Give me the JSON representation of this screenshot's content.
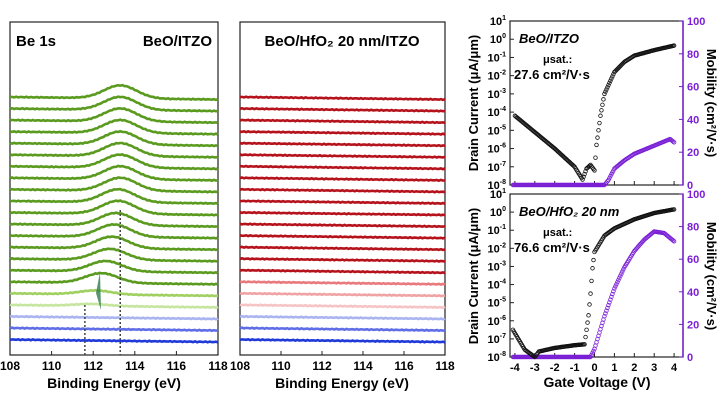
{
  "chart_data": [
    {
      "type": "line",
      "panel": "xps-left",
      "title_left": "Be 1s",
      "title_right": "BeO/ITZO",
      "xlabel": "Binding Energy (eV)",
      "xlim": [
        108,
        118
      ],
      "xticks": [
        "108",
        "110",
        "112",
        "114",
        "116",
        "118"
      ],
      "reference_lines_eV": [
        113.3,
        111.6
      ],
      "series": [
        {
          "color": "#5a9a1e",
          "peak_eV": 113.3,
          "intensity": 1.0
        },
        {
          "color": "#5a9a1e",
          "peak_eV": 113.3,
          "intensity": 1.0
        },
        {
          "color": "#5a9a1e",
          "peak_eV": 113.3,
          "intensity": 1.0
        },
        {
          "color": "#5a9a1e",
          "peak_eV": 113.3,
          "intensity": 1.0
        },
        {
          "color": "#5a9a1e",
          "peak_eV": 113.3,
          "intensity": 1.0
        },
        {
          "color": "#5a9a1e",
          "peak_eV": 113.3,
          "intensity": 1.0
        },
        {
          "color": "#5a9a1e",
          "peak_eV": 113.3,
          "intensity": 1.0
        },
        {
          "color": "#5a9a1e",
          "peak_eV": 113.3,
          "intensity": 1.0
        },
        {
          "color": "#5a9a1e",
          "peak_eV": 113.3,
          "intensity": 1.0
        },
        {
          "color": "#5a9a1e",
          "peak_eV": 113.2,
          "intensity": 1.0
        },
        {
          "color": "#5a9a1e",
          "peak_eV": 113.2,
          "intensity": 1.0
        },
        {
          "color": "#5a9a1e",
          "peak_eV": 113.1,
          "intensity": 0.95
        },
        {
          "color": "#5a9a1e",
          "peak_eV": 113.0,
          "intensity": 0.95
        },
        {
          "color": "#5a9a1e",
          "peak_eV": 112.9,
          "intensity": 0.9
        },
        {
          "color": "#5a9a1e",
          "peak_eV": 112.8,
          "intensity": 0.85
        },
        {
          "color": "#5a9a1e",
          "peak_eV": 112.6,
          "intensity": 0.8
        },
        {
          "color": "#5a9a1e",
          "peak_eV": 112.4,
          "intensity": 0.75
        },
        {
          "color": "#9fd060",
          "peak_eV": 112.1,
          "intensity": 0.3
        },
        {
          "color": "#c6e6a0",
          "peak_eV": 111.9,
          "intensity": 0.15
        },
        {
          "color": "#a9b4f0",
          "peak_eV": 111.6,
          "intensity": 0.0
        },
        {
          "color": "#5f6ee6",
          "peak_eV": 111.6,
          "intensity": 0.0
        },
        {
          "color": "#1f3ad8",
          "peak_eV": 111.6,
          "intensity": 0.0
        }
      ]
    },
    {
      "type": "line",
      "panel": "xps-middle",
      "title": "BeO/HfO₂ 20 nm/ITZO",
      "xlabel": "Binding Energy (eV)",
      "xlim": [
        108,
        118
      ],
      "xticks": [
        "108",
        "110",
        "112",
        "114",
        "116",
        "118"
      ],
      "series_colors": [
        "#b5121b",
        "#b5121b",
        "#b5121b",
        "#b5121b",
        "#b5121b",
        "#b5121b",
        "#b5121b",
        "#b5121b",
        "#b5121b",
        "#b5121b",
        "#b5121b",
        "#b5121b",
        "#b5121b",
        "#b5121b",
        "#b5121b",
        "#b5121b",
        "#e8797c",
        "#f0a3a5",
        "#f6c4c5",
        "#a9b4f0",
        "#5f6ee6",
        "#1f3ad8"
      ]
    },
    {
      "type": "scatter",
      "panel": "transfer-top",
      "annotation_title": "BeO/ITZO",
      "mu_label": "μsat.:",
      "mu_value": "27.6 cm²/V·s",
      "ylabel_left": "Drain Current (μA/μm)",
      "ylabel_right": "Mobility (cm²/V·s)",
      "xlim": [
        -4.5,
        4.5
      ],
      "ylim_left_log10": [
        -8,
        1
      ],
      "ylim_right": [
        0,
        100
      ],
      "yticks_left": [
        "10-8",
        "10-7",
        "10-6",
        "10-5",
        "10-4",
        "10-3",
        "10-2",
        "10-1",
        "100",
        "101"
      ],
      "yticks_right": [
        "0",
        "20",
        "40",
        "60",
        "80",
        "100"
      ],
      "drain_current": {
        "x": [
          -4,
          -3,
          -2,
          -1,
          -0.6,
          -0.4,
          -0.2,
          0,
          0.1,
          0.3,
          0.5,
          1,
          1.5,
          2,
          3,
          4
        ],
        "log10_y": [
          -4.2,
          -5.1,
          -6.0,
          -7.0,
          -7.7,
          -7.1,
          -6.9,
          -7.2,
          -5.8,
          -4.2,
          -3.0,
          -1.8,
          -1.25,
          -0.9,
          -0.6,
          -0.35
        ]
      },
      "mobility": {
        "x": [
          -4.1,
          0.5,
          0.7,
          1,
          1.5,
          2,
          3,
          3.8,
          4
        ],
        "y": [
          0,
          0,
          3,
          10,
          15,
          19,
          24,
          28,
          26
        ]
      },
      "drain_color": "#111111",
      "mobility_color": "#7a1fd6"
    },
    {
      "type": "scatter",
      "panel": "transfer-bottom",
      "annotation_title": "BeO/HfO₂ 20 nm",
      "mu_label": "μsat.:",
      "mu_value": "76.6 cm²/V·s",
      "xlabel": "Gate Voltage (V)",
      "ylabel_left": "Drain Current (μA/μm)",
      "ylabel_right": "Mobility (cm²/V·s)",
      "xlim": [
        -4.5,
        4.5
      ],
      "xticks": [
        "-4",
        "-3",
        "-2",
        "-1",
        "0",
        "1",
        "2",
        "3",
        "4"
      ],
      "ylim_left_log10": [
        -8,
        1
      ],
      "ylim_right": [
        0,
        100
      ],
      "yticks_left": [
        "10-8",
        "10-7",
        "10-6",
        "10-5",
        "10-4",
        "10-3",
        "10-2",
        "10-1",
        "100",
        "101"
      ],
      "yticks_right": [
        "0",
        "20",
        "40",
        "60",
        "80",
        "100"
      ],
      "drain_current": {
        "x": [
          -4.1,
          -3.5,
          -3,
          -2.8,
          -2,
          -1,
          -0.5,
          -0.4,
          -0.3,
          -0.2,
          -0.1,
          0,
          0.5,
          1,
          2,
          3,
          4
        ],
        "log10_y": [
          -6.5,
          -7.6,
          -8,
          -7.7,
          -7.5,
          -7.35,
          -7.3,
          -6.5,
          -5.7,
          -4.5,
          -3.1,
          -2.2,
          -1.3,
          -0.9,
          -0.4,
          -0.05,
          0.15
        ]
      },
      "mobility": {
        "x": [
          -4.1,
          -0.2,
          0,
          0.5,
          1,
          1.5,
          2,
          2.5,
          3,
          3.5,
          4
        ],
        "y": [
          0,
          0,
          5,
          25,
          42,
          55,
          65,
          72,
          77,
          76,
          71
        ]
      },
      "drain_color": "#111111",
      "mobility_color": "#7a1fd6"
    }
  ]
}
